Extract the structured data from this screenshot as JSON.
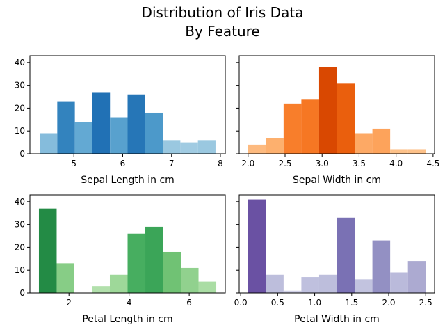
{
  "figure": {
    "title_line1": "Distribution of Iris Data",
    "title_line2": "By Feature"
  },
  "chart_data": [
    {
      "type": "bar",
      "subtype": "histogram",
      "xlabel": "Sepal Length in cm",
      "ylabel": "",
      "xlim": [
        4.1,
        8.1
      ],
      "ylim": [
        0,
        43
      ],
      "xticks": [
        5,
        6,
        7,
        8
      ],
      "yticks": [
        0,
        10,
        20,
        30,
        40
      ],
      "ytick_labels_visible": true,
      "bin_edges": [
        4.3,
        4.66,
        5.02,
        5.38,
        5.74,
        6.1,
        6.46,
        6.82,
        7.18,
        7.54,
        7.9
      ],
      "values": [
        9,
        23,
        14,
        27,
        16,
        26,
        18,
        6,
        5,
        6
      ],
      "colormap": "Blues"
    },
    {
      "type": "bar",
      "subtype": "histogram",
      "xlabel": "Sepal Width in cm",
      "ylabel": "",
      "xlim": [
        1.88,
        4.52
      ],
      "ylim": [
        0,
        43
      ],
      "xticks": [
        2.0,
        2.5,
        3.0,
        3.5,
        4.0,
        4.5
      ],
      "xtick_labels": [
        "2.0",
        "2.5",
        "3.0",
        "3.5",
        "4.0",
        "4.5"
      ],
      "yticks": [
        0,
        10,
        20,
        30,
        40
      ],
      "ytick_labels_visible": false,
      "bin_edges": [
        2.0,
        2.24,
        2.48,
        2.72,
        2.96,
        3.2,
        3.44,
        3.68,
        3.92,
        4.16,
        4.4
      ],
      "values": [
        4,
        7,
        22,
        24,
        38,
        31,
        9,
        11,
        2,
        2
      ],
      "colormap": "Oranges"
    },
    {
      "type": "bar",
      "subtype": "histogram",
      "xlabel": "Petal Length in cm",
      "ylabel": "",
      "xlim": [
        0.7,
        7.2
      ],
      "ylim": [
        0,
        43
      ],
      "xticks": [
        2,
        4,
        6
      ],
      "yticks": [
        0,
        10,
        20,
        30,
        40
      ],
      "ytick_labels_visible": true,
      "bin_edges": [
        1.0,
        1.59,
        2.18,
        2.77,
        3.36,
        3.95,
        4.54,
        5.13,
        5.72,
        6.31,
        6.9
      ],
      "values": [
        37,
        13,
        0,
        3,
        8,
        26,
        29,
        18,
        11,
        5
      ],
      "colormap": "Greens"
    },
    {
      "type": "bar",
      "subtype": "histogram",
      "xlabel": "Petal Width in cm",
      "ylabel": "",
      "xlim": [
        -0.02,
        2.62
      ],
      "ylim": [
        0,
        43
      ],
      "xticks": [
        0.0,
        0.5,
        1.0,
        1.5,
        2.0,
        2.5
      ],
      "xtick_labels": [
        "0.0",
        "0.5",
        "1.0",
        "1.5",
        "2.0",
        "2.5"
      ],
      "yticks": [
        0,
        10,
        20,
        30,
        40
      ],
      "ytick_labels_visible": false,
      "bin_edges": [
        0.1,
        0.34,
        0.58,
        0.82,
        1.06,
        1.3,
        1.54,
        1.78,
        2.02,
        2.26,
        2.5
      ],
      "values": [
        41,
        8,
        1,
        7,
        8,
        33,
        6,
        23,
        9,
        14
      ],
      "colormap": "Purples"
    }
  ]
}
